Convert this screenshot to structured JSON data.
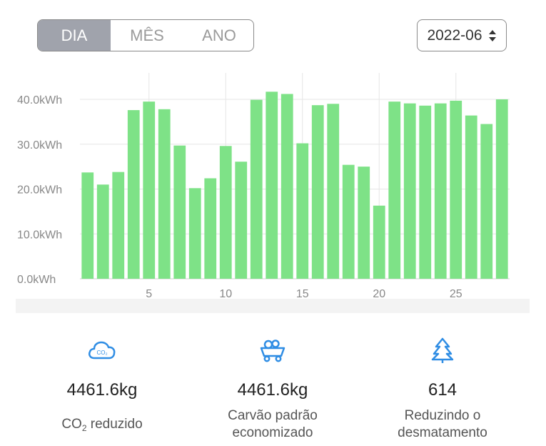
{
  "tabs": [
    {
      "label": "DIA",
      "active": true
    },
    {
      "label": "MÊS",
      "active": false
    },
    {
      "label": "ANO",
      "active": false
    }
  ],
  "month_select": {
    "value": "2022-06"
  },
  "colors": {
    "bar": "#7ee287",
    "active_tab": "#a0a3ac",
    "icon": "#2f8de4"
  },
  "chart_data": {
    "type": "bar",
    "x": [
      1,
      2,
      3,
      4,
      5,
      6,
      7,
      8,
      9,
      10,
      11,
      12,
      13,
      14,
      15,
      16,
      17,
      18,
      19,
      20,
      21,
      22,
      23,
      24,
      25,
      26,
      27,
      28
    ],
    "values": [
      23.7,
      21.0,
      23.8,
      37.6,
      39.5,
      37.8,
      29.7,
      20.2,
      22.4,
      29.6,
      26.1,
      39.9,
      41.7,
      41.2,
      30.2,
      38.7,
      39.0,
      25.4,
      25.0,
      16.3,
      39.5,
      39.1,
      38.6,
      39.1,
      39.7,
      36.4,
      34.5,
      40.0
    ],
    "x_ticks": [
      "5",
      "10",
      "15",
      "20",
      "25"
    ],
    "y_ticks": [
      "0.0kWh",
      "10.0kWh",
      "20.0kWh",
      "30.0kWh",
      "40.0kWh"
    ],
    "ylim": [
      0,
      40
    ],
    "grid": true
  },
  "stats": [
    {
      "icon": "co2-cloud-icon",
      "value": "4461.6kg",
      "label_main": "CO",
      "label_sub": "2",
      "label_rest": " reduzido"
    },
    {
      "icon": "coal-cart-icon",
      "value": "4461.6kg",
      "label_line1": "Carvão padrão",
      "label_line2": "economizado"
    },
    {
      "icon": "tree-icon",
      "value": "614",
      "label_line1": "Reduzindo o",
      "label_line2": "desmatamento"
    }
  ]
}
